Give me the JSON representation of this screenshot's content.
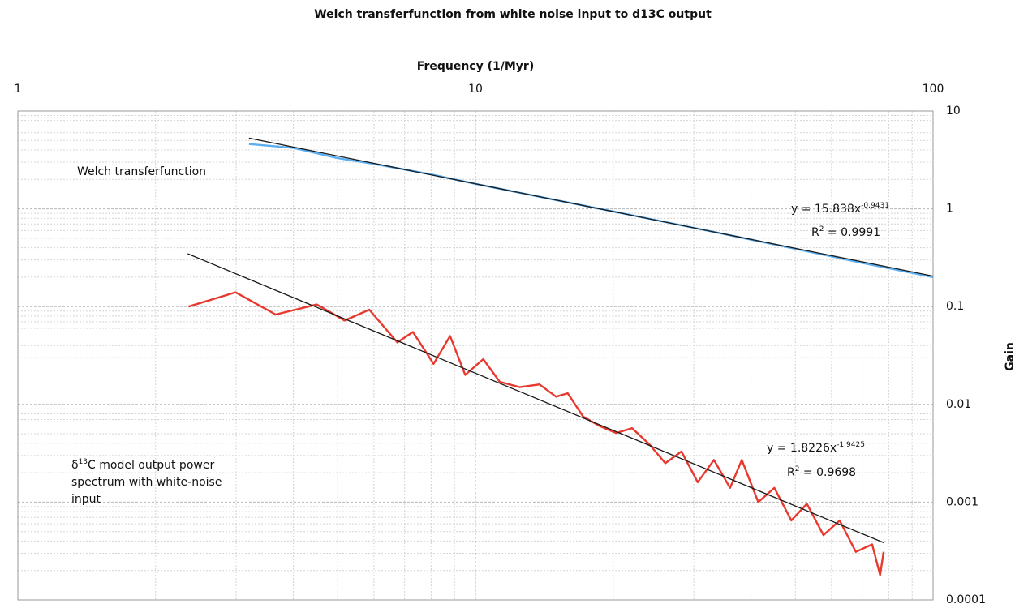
{
  "chart_data": {
    "type": "line",
    "title": "Welch transferfunction from white noise input to d13C output",
    "x_label": "Frequency (1/Myr)",
    "y_label": "Gain",
    "x_log": true,
    "y_log": true,
    "grid": true,
    "xlim": [
      1,
      100
    ],
    "ylim": [
      0.0001,
      10
    ],
    "xticks": [
      1,
      10,
      100
    ],
    "yticks": [
      0.0001,
      0.001,
      0.01,
      0.1,
      1,
      10
    ],
    "xminorticks": [
      2,
      3,
      4,
      5,
      6,
      7,
      8,
      9,
      20,
      30,
      40,
      50,
      60,
      70,
      80,
      90
    ],
    "yminorticks": [
      0.0002,
      0.0003,
      0.0004,
      0.0005,
      0.0006,
      0.0007,
      0.0008,
      0.0009,
      0.002,
      0.003,
      0.004,
      0.005,
      0.006,
      0.007,
      0.008,
      0.009,
      0.02,
      0.03,
      0.04,
      0.05,
      0.06,
      0.07,
      0.08,
      0.09,
      0.2,
      0.3,
      0.4,
      0.5,
      0.6,
      0.7,
      0.8,
      0.9,
      2,
      3,
      4,
      5,
      6,
      7,
      8,
      9
    ],
    "series": [
      {
        "color": "#e8392f",
        "x": [
          2.36,
          2.99,
          3.66,
          4.5,
          5.18,
          5.86,
          6.75,
          7.3,
          8.1,
          8.8,
          9.5,
          10.4,
          11.3,
          12.5,
          13.8,
          15,
          15.9,
          17.2,
          18.7,
          20.3,
          22,
          24,
          26,
          28.2,
          30.6,
          33.2,
          36,
          38.2,
          41.5,
          45,
          49,
          53,
          57.6,
          62.5,
          67.8,
          73.6,
          76.6,
          78
        ],
        "values": [
          0.1,
          0.14,
          0.083,
          0.105,
          0.072,
          0.093,
          0.043,
          0.055,
          0.026,
          0.05,
          0.02,
          0.029,
          0.017,
          0.015,
          0.016,
          0.012,
          0.013,
          0.0075,
          0.006,
          0.0051,
          0.0057,
          0.0039,
          0.0025,
          0.0033,
          0.0016,
          0.0027,
          0.0014,
          0.0027,
          0.001,
          0.0014,
          0.00065,
          0.00096,
          0.00046,
          0.00065,
          0.00031,
          0.00037,
          0.00018,
          0.00031
        ]
      },
      {
        "color": "#5aaef0",
        "x": [
          3.2,
          4,
          5,
          6,
          8,
          10,
          15,
          20,
          30,
          50,
          70,
          100
        ],
        "values": [
          4.6,
          4.2,
          3.3,
          2.88,
          2.25,
          1.8,
          1.23,
          0.94,
          0.64,
          0.39,
          0.28,
          0.2
        ]
      },
      {
        "color": "#1a1a1a",
        "x": [
          3.2,
          100
        ],
        "values": [
          5.29,
          0.205
        ]
      },
      {
        "color": "#1a1a1a",
        "x": [
          2.35,
          78
        ],
        "values": [
          0.347,
          0.000385
        ]
      }
    ],
    "annotations": [
      {
        "lines": [
          [
            "Welch transferfunction"
          ]
        ]
      },
      {
        "lines": [
          [
            "y = 15.838x",
            "-0.9431"
          ],
          [
            "R",
            "2",
            " = 0.9991"
          ]
        ]
      },
      {
        "lines": [
          [
            "y = 1.8226x",
            "-1.9425"
          ],
          [
            "R",
            "2",
            " = 0.9698"
          ]
        ]
      },
      {
        "lines": [
          [
            "δ",
            "13",
            "C model output power"
          ],
          [
            "spectrum with white-noise"
          ],
          [
            "input"
          ]
        ]
      }
    ]
  }
}
